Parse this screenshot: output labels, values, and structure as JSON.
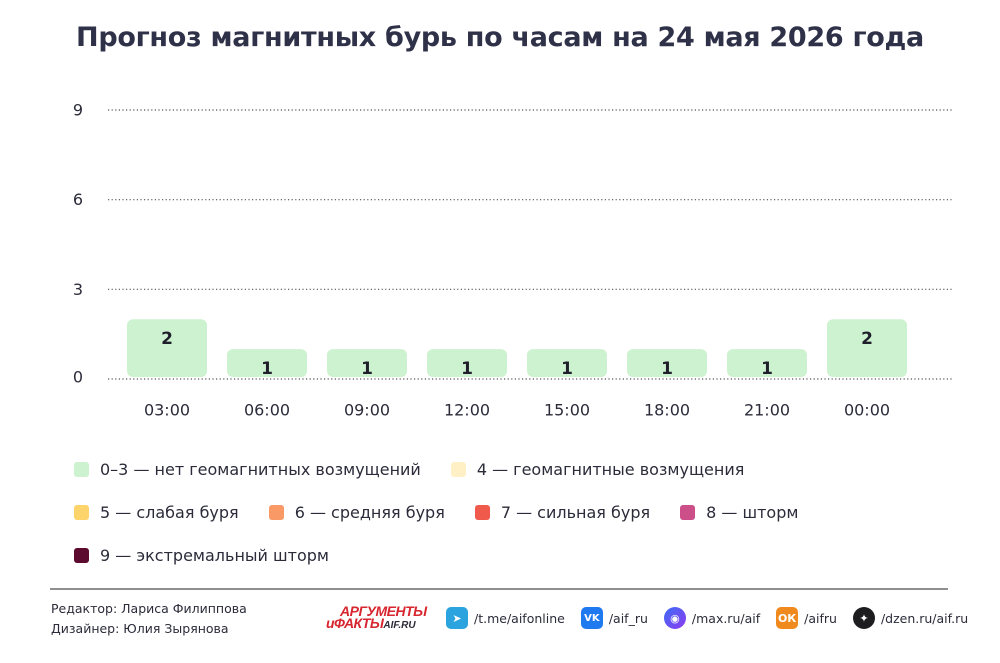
{
  "title": "Прогноз магнитных бурь по часам на 24 мая 2026 года",
  "chart_data": {
    "type": "bar",
    "categories": [
      "03:00",
      "06:00",
      "09:00",
      "12:00",
      "15:00",
      "18:00",
      "21:00",
      "00:00"
    ],
    "values": [
      2,
      1,
      1,
      1,
      1,
      1,
      1,
      2
    ],
    "ylim": [
      0,
      9
    ],
    "yticks": [
      0,
      3,
      6,
      9
    ],
    "grid": "dotted horizontal",
    "bar_color": "#cdf2cf",
    "label_color": "#1f1f2b"
  },
  "legend": [
    [
      {
        "label": "0–3 — нет геомагнитных возмущений",
        "color": "#cdf2cf"
      },
      {
        "label": "4 — геомагнитные возмущения",
        "color": "#fff0c6"
      }
    ],
    [
      {
        "label": "5 — слабая буря",
        "color": "#fdd46b"
      },
      {
        "label": "6 — средняя буря",
        "color": "#f99a66"
      },
      {
        "label": "7 — сильная буря",
        "color": "#ef5a4d"
      },
      {
        "label": "8 — шторм",
        "color": "#cc4f8a"
      }
    ],
    [
      {
        "label": "9 — экстремальный шторм",
        "color": "#5c0b2f"
      }
    ]
  ],
  "footer": {
    "editor": "Редактор: Лариса Филиппова",
    "designer": "Дизайнер: Юлия Зырянова",
    "logo_line1": "АРГУМЕНТЫ",
    "logo_line2": "иФАКТЫ",
    "logo_small": "AIF.RU",
    "socials": [
      {
        "icon": "telegram-icon",
        "glyph": "➤",
        "label": "/t.me/aifonline",
        "cls": "ic-tg"
      },
      {
        "icon": "vk-icon",
        "glyph": "VK",
        "label": "/aif_ru",
        "cls": "ic-vk"
      },
      {
        "icon": "max-icon",
        "glyph": "◉",
        "label": "/max.ru/aif",
        "cls": "ic-max"
      },
      {
        "icon": "odnoklassniki-icon",
        "glyph": "ОК",
        "label": "/aifru",
        "cls": "ic-ok"
      },
      {
        "icon": "dzen-icon",
        "glyph": "✦",
        "label": "/dzen.ru/aif.ru",
        "cls": "ic-dzen"
      }
    ]
  }
}
